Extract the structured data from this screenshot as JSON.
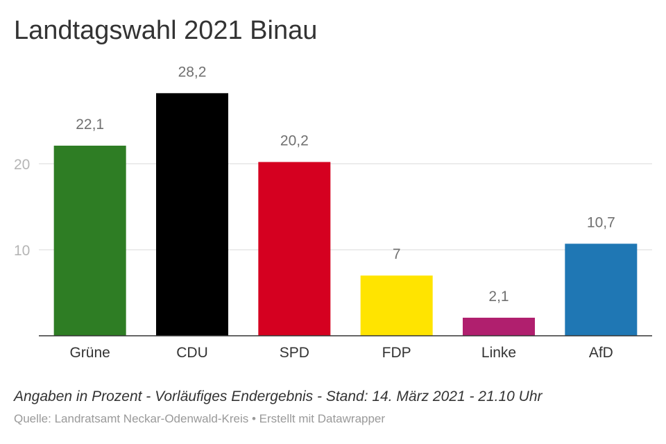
{
  "title": "Landtagswahl 2021 Binau",
  "caption": "Angaben in Prozent - Vorläufiges Endergebnis - Stand: 14. März 2021 - 21.10 Uhr",
  "source": "Quelle: Landratsamt Neckar-Odenwald-Kreis • Erstellt mit Datawrapper",
  "chart_data": {
    "type": "bar",
    "categories": [
      "Grüne",
      "CDU",
      "SPD",
      "FDP",
      "Linke",
      "AfD"
    ],
    "values": [
      22.1,
      28.2,
      20.2,
      7,
      2.1,
      10.7
    ],
    "value_labels": [
      "22,1",
      "28,2",
      "20,2",
      "7",
      "2,1",
      "10,7"
    ],
    "colors": [
      "#2e7d24",
      "#000000",
      "#d50020",
      "#ffe400",
      "#b01f6e",
      "#1f77b4"
    ],
    "yticks": [
      10,
      20
    ],
    "ytick_labels": [
      "10",
      "20"
    ],
    "ylim": [
      0,
      30
    ],
    "grid": true
  }
}
